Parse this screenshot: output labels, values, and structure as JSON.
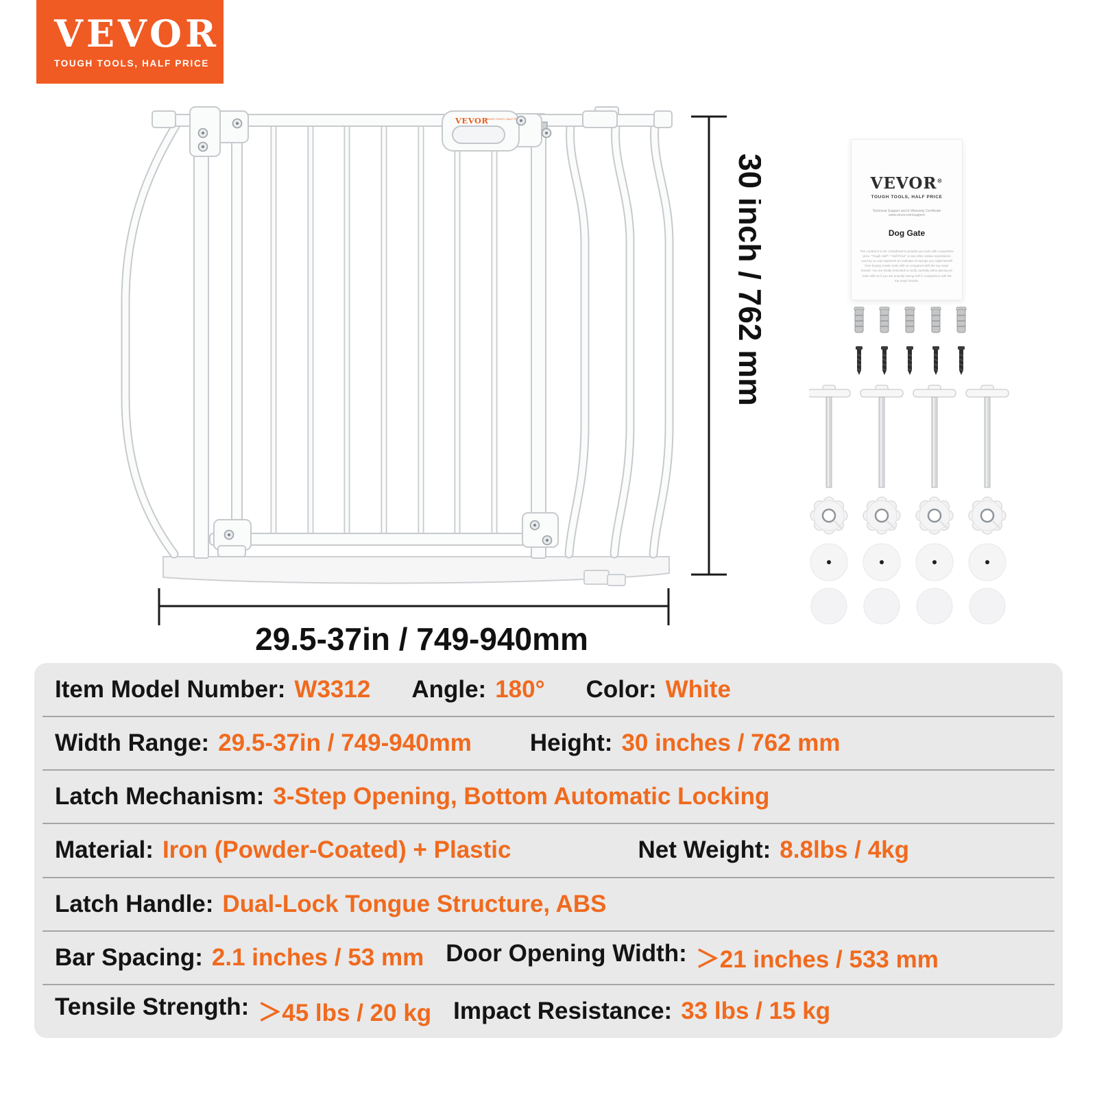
{
  "brand_logo": {
    "text": "VEVOR",
    "tagline": "TOUGH TOOLS, HALF PRICE",
    "bg_color": "#F05A23"
  },
  "diagram": {
    "height_label": "30 inch / 762 mm",
    "width_label": "29.5-37in / 749-940mm",
    "handle_brand": "VEVOR",
    "handle_note": "TOUGH TOOLS, HALF PRICE"
  },
  "manual": {
    "brand": "VEVOR",
    "reg_mark": "®",
    "tagline": "TOUGH TOOLS, HALF PRICE",
    "support_line": "Technical Support and E-Warranty Certificate www.vevor.com/support",
    "title": "Dog Gate",
    "fine_print": "The content is to be considered to provide you tools with competitive price. \"Tough Half\" / \"Half Price\" or any other similar expressions used by us only represent an estimate of savings you might benefit from buying certain tools with us compared with the top major brands. You are kindly reminded to verify carefully when placing an order with us if you are actually saving half in comparison with the top major brands."
  },
  "colors": {
    "accent_text": "#F06A1E",
    "table_bg": "#E9E9E9",
    "label_text": "#141414",
    "dimension_line": "#1A1A1A"
  },
  "specs": {
    "rows": [
      {
        "segments": [
          {
            "label": "Item Model Number:",
            "value": "W3312"
          },
          {
            "label": "Angle:",
            "value": "180°"
          },
          {
            "label": "Color:",
            "value": "White"
          }
        ]
      },
      {
        "segments": [
          {
            "label": "Width Range:",
            "value": "29.5-37in / 749-940mm"
          },
          {
            "label": "Height:",
            "value": "30 inches / 762 mm"
          }
        ]
      },
      {
        "segments": [
          {
            "label": "Latch Mechanism:",
            "value": "3-Step Opening, Bottom Automatic Locking"
          }
        ]
      },
      {
        "segments": [
          {
            "label": "Material:",
            "value": "Iron (Powder-Coated) + Plastic"
          },
          {
            "label": "Net Weight:",
            "value": "8.8lbs / 4kg"
          }
        ]
      },
      {
        "segments": [
          {
            "label": "Latch Handle:",
            "value": "Dual-Lock Tongue Structure, ABS"
          }
        ]
      },
      {
        "segments": [
          {
            "label": "Bar Spacing:",
            "value": "2.1 inches / 53 mm"
          },
          {
            "label": "Door Opening Width:",
            "value": "＞21 inches / 533 mm"
          }
        ]
      },
      {
        "segments": [
          {
            "label": "Tensile Strength:",
            "value": "＞45 lbs / 20 kg"
          },
          {
            "label": "Impact Resistance:",
            "value": "33 lbs / 15 kg"
          }
        ]
      }
    ]
  }
}
